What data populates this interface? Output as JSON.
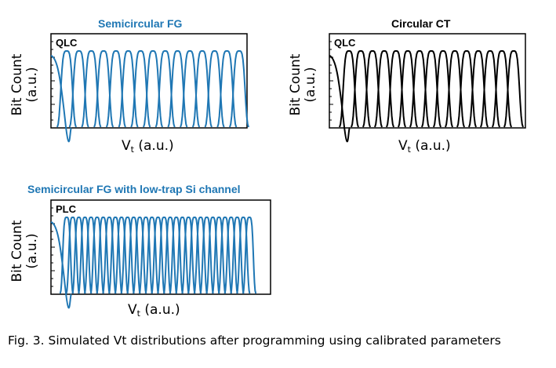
{
  "caption": "Fig. 3. Simulated Vt distributions after programming using calibrated parameters",
  "chart_data": [
    {
      "type": "line",
      "title": "Semicircular  FG",
      "tag": "QLC",
      "xlabel_main": "V",
      "xlabel_sub": "t",
      "xlabel_tail": " (a.u.)",
      "ylabel_line1": "Bit Count",
      "ylabel_line2": "(a.u.)",
      "color": "#1f77b4",
      "num_states": 16,
      "erase_state": true
    },
    {
      "type": "line",
      "title": "Circular  CT",
      "tag": "QLC",
      "xlabel_main": "V",
      "xlabel_sub": "t",
      "xlabel_tail": " (a.u.)",
      "ylabel_line1": "Bit Count",
      "ylabel_line2": "(a.u.)",
      "color": "#000000",
      "num_states": 16,
      "erase_state": true
    },
    {
      "type": "line",
      "title": "Semicircular  FG with low-trap Si channel",
      "tag": "PLC",
      "xlabel_main": "V",
      "xlabel_sub": "t",
      "xlabel_tail": " (a.u.)",
      "ylabel_line1": "Bit Count",
      "ylabel_line2": "(a.u.)",
      "color": "#1f77b4",
      "num_states": 32,
      "erase_state": true
    }
  ]
}
